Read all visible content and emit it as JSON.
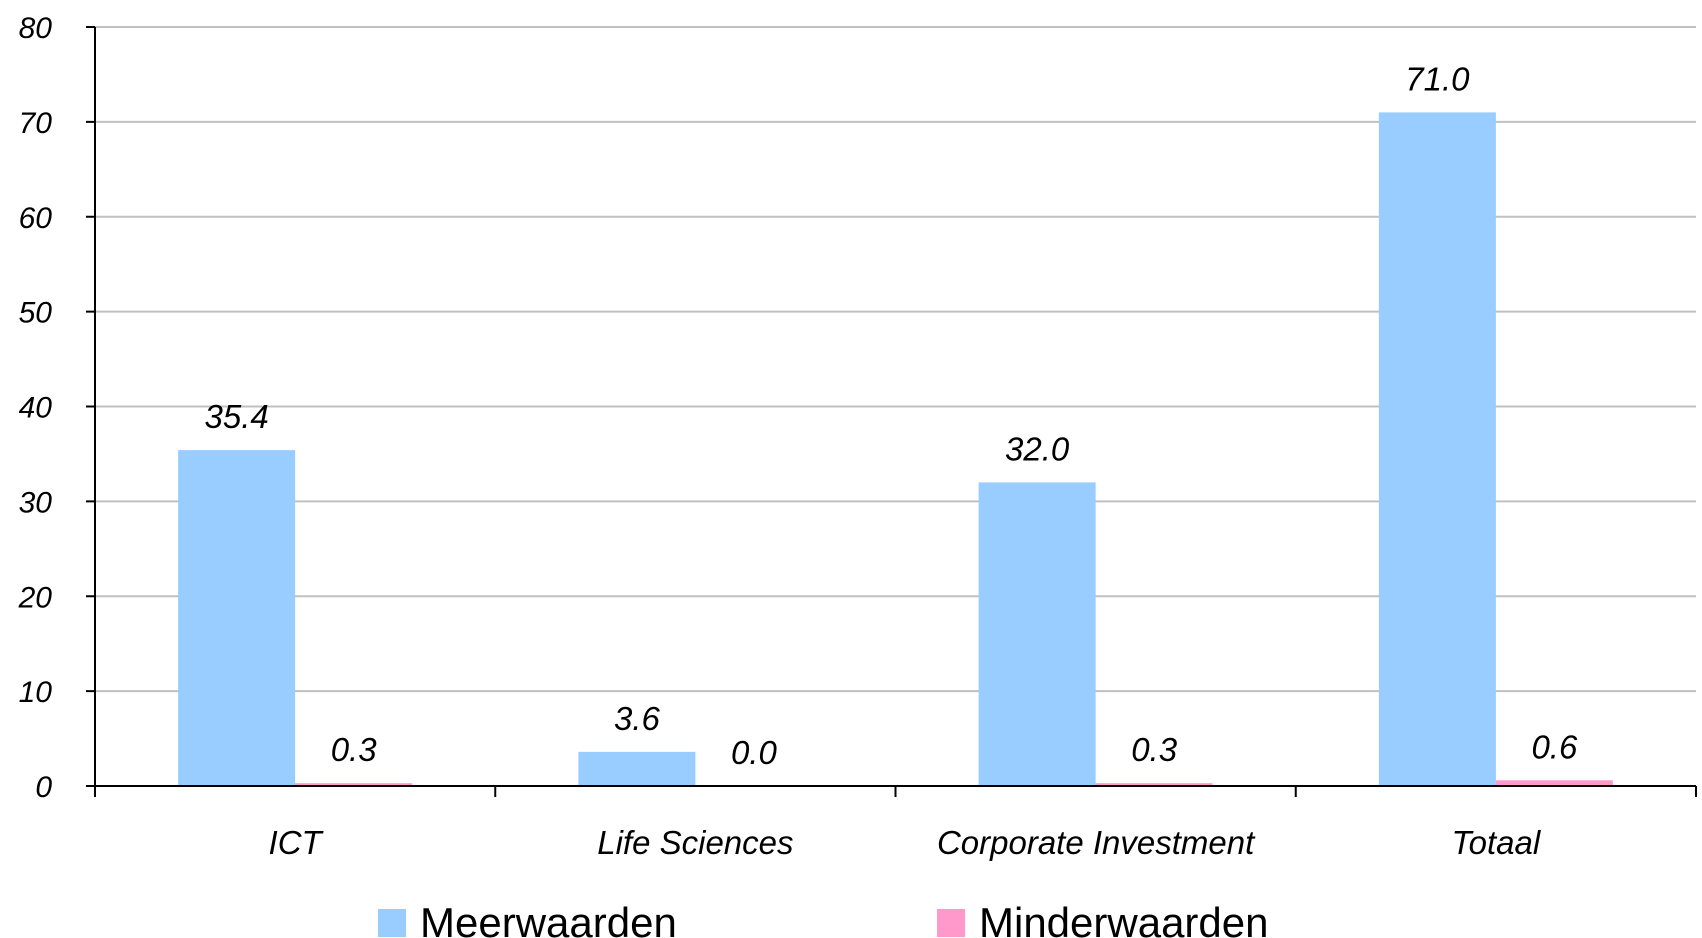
{
  "chart_data": {
    "type": "bar",
    "categories": [
      "ICT",
      "Life Sciences",
      "Corporate Investment",
      "Totaal"
    ],
    "series": [
      {
        "name": "Meerwaarden",
        "values": [
          35.4,
          3.6,
          32.0,
          71.0
        ],
        "labels": [
          "35.4",
          "3.6",
          "32.0",
          "71.0"
        ],
        "color": "#99ccff"
      },
      {
        "name": "Minderwaarden",
        "values": [
          0.3,
          0.0,
          0.3,
          0.6
        ],
        "labels": [
          "0.3",
          "0.0",
          "0.3",
          "0.6"
        ],
        "color": "#ff99cc"
      }
    ],
    "yticks": [
      "0",
      "10",
      "20",
      "30",
      "40",
      "50",
      "60",
      "70",
      "80"
    ],
    "ylim": [
      0,
      80
    ],
    "grid": true,
    "legend": "bottom"
  }
}
